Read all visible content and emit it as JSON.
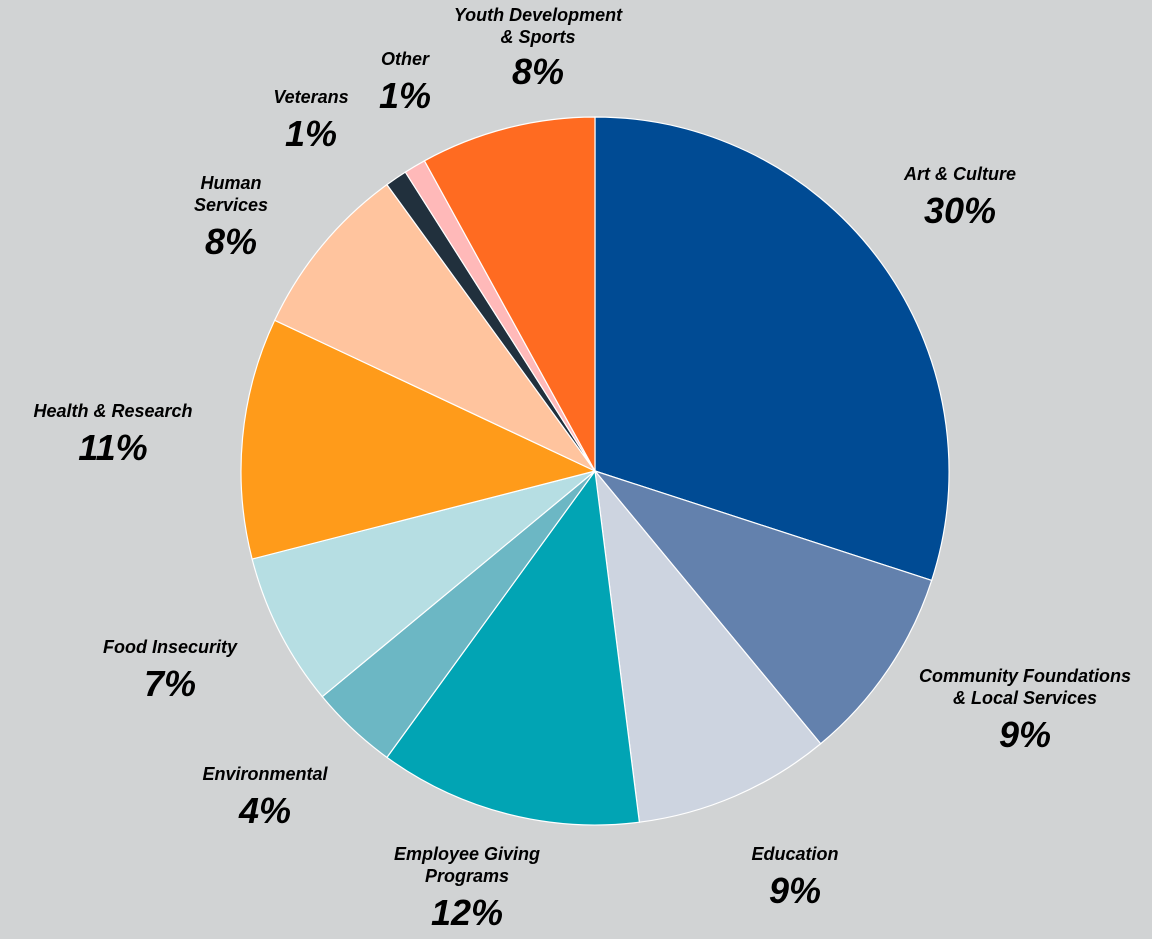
{
  "chart_data": {
    "type": "pie",
    "title": "",
    "start_angle_deg": 0,
    "direction": "clockwise",
    "slices": [
      {
        "label": "Art & Culture",
        "value": 30,
        "value_text": "30%",
        "color": "#004b94"
      },
      {
        "label": "Community Foundations & Local Services",
        "value": 9,
        "value_text": "9%",
        "color": "#6381ad"
      },
      {
        "label": "Education",
        "value": 9,
        "value_text": "9%",
        "color": "#cdd4e0"
      },
      {
        "label": "Employee Giving Programs",
        "value": 12,
        "value_text": "12%",
        "color": "#01a4b4"
      },
      {
        "label": "Environmental",
        "value": 4,
        "value_text": "4%",
        "color": "#6cb7c4"
      },
      {
        "label": "Food Insecurity",
        "value": 7,
        "value_text": "7%",
        "color": "#b6dee3"
      },
      {
        "label": "Health & Research",
        "value": 11,
        "value_text": "11%",
        "color": "#ff9b1a"
      },
      {
        "label": "Human Services",
        "value": 8,
        "value_text": "8%",
        "color": "#ffc49e"
      },
      {
        "label": "Veterans",
        "value": 1,
        "value_text": "1%",
        "color": "#21303d"
      },
      {
        "label": "Other",
        "value": 1,
        "value_text": "1%",
        "color": "#ffb9b9"
      },
      {
        "label": "Youth Development & Sports",
        "value": 8,
        "value_text": "8%",
        "color": "#ff6b21"
      }
    ]
  }
}
